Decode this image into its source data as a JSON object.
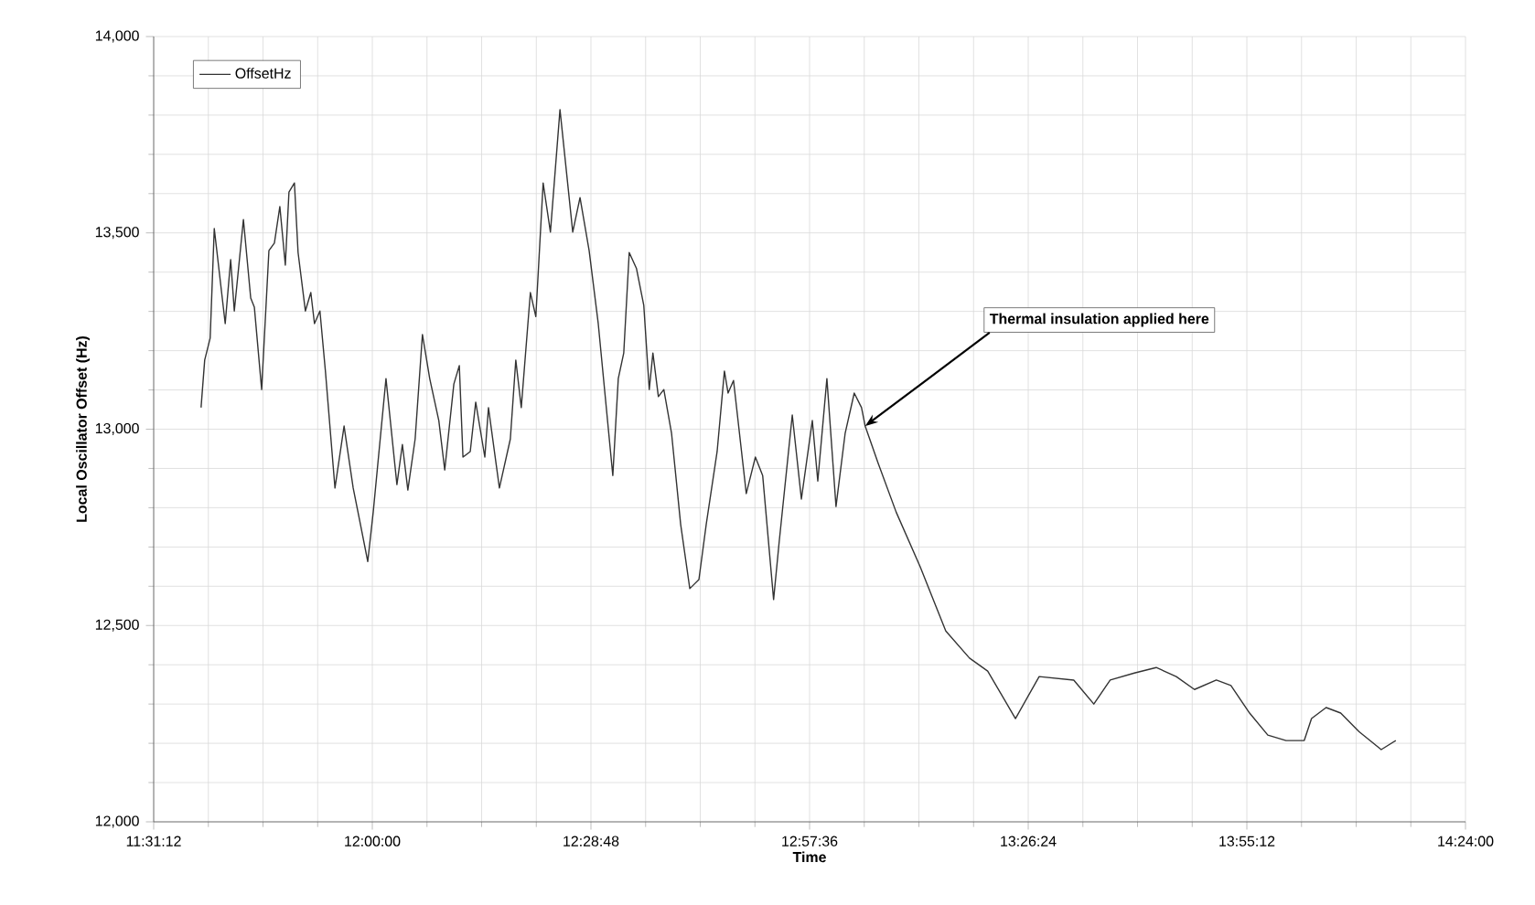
{
  "chart_data": {
    "type": "line",
    "xlabel": "Time",
    "ylabel": "Local Oscillator Offset (Hz)",
    "xlim": [
      11.52,
      14.4
    ],
    "xticks": [
      {
        "value": 11.52,
        "label": "11:31:12"
      },
      {
        "value": 12.0,
        "label": "12:00:00"
      },
      {
        "value": 12.48,
        "label": "12:28:48"
      },
      {
        "value": 12.96,
        "label": "12:57:36"
      },
      {
        "value": 13.44,
        "label": "13:26:24"
      },
      {
        "value": 13.92,
        "label": "13:55:12"
      },
      {
        "value": 14.4,
        "label": "14:24:00"
      }
    ],
    "ylim": [
      12000,
      14000
    ],
    "yticks": [
      {
        "value": 12000,
        "label": "12,000"
      },
      {
        "value": 12500,
        "label": "12,500"
      },
      {
        "value": 13000,
        "label": "13,000"
      },
      {
        "value": 13500,
        "label": "13,500"
      },
      {
        "value": 14000,
        "label": "14,000"
      }
    ],
    "grid": true,
    "legend": "top left",
    "marker": "none",
    "line_style": "solid",
    "annotations": [
      {
        "text": "Thermal insulation applied here",
        "x": 13.082,
        "y": 13008
      }
    ],
    "series": [
      {
        "name": "OffsetHz",
        "color": "#333333",
        "x": [
          11.624,
          11.632,
          11.644,
          11.653,
          11.677,
          11.689,
          11.697,
          11.717,
          11.733,
          11.741,
          11.757,
          11.773,
          11.785,
          11.797,
          11.809,
          11.817,
          11.829,
          11.837,
          11.853,
          11.865,
          11.873,
          11.885,
          11.897,
          11.918,
          11.938,
          11.958,
          11.974,
          11.99,
          12.002,
          12.03,
          12.054,
          12.066,
          12.078,
          12.094,
          12.11,
          12.126,
          12.146,
          12.159,
          12.179,
          12.191,
          12.199,
          12.215,
          12.227,
          12.247,
          12.255,
          12.279,
          12.303,
          12.315,
          12.327,
          12.347,
          12.359,
          12.375,
          12.391,
          12.412,
          12.44,
          12.456,
          12.476,
          12.496,
          12.528,
          12.54,
          12.552,
          12.564,
          12.58,
          12.596,
          12.608,
          12.616,
          12.628,
          12.64,
          12.657,
          12.677,
          12.697,
          12.717,
          12.733,
          12.757,
          12.773,
          12.781,
          12.793,
          12.821,
          12.841,
          12.857,
          12.881,
          12.893,
          12.922,
          12.942,
          12.966,
          12.978,
          12.998,
          13.018,
          13.038,
          13.058,
          13.074,
          13.082,
          13.11,
          13.15,
          13.203,
          13.259,
          13.311,
          13.351,
          13.412,
          13.464,
          13.54,
          13.584,
          13.62,
          13.673,
          13.721,
          13.765,
          13.805,
          13.853,
          13.885,
          13.926,
          13.966,
          14.006,
          14.046,
          14.062,
          14.094,
          14.126,
          14.166,
          14.215,
          14.247
        ],
        "values": [
          13055,
          13176,
          13232,
          13511,
          13269,
          13432,
          13301,
          13534,
          13334,
          13311,
          13101,
          13455,
          13474,
          13567,
          13418,
          13604,
          13627,
          13450,
          13301,
          13348,
          13269,
          13301,
          13148,
          12850,
          13008,
          12850,
          12757,
          12663,
          12789,
          13129,
          12859,
          12961,
          12845,
          12975,
          13241,
          13129,
          13022,
          12896,
          13115,
          13162,
          12929,
          12943,
          13069,
          12929,
          13055,
          12850,
          12975,
          13176,
          13055,
          13348,
          13287,
          13627,
          13502,
          13814,
          13502,
          13590,
          13455,
          13269,
          12882,
          13129,
          13194,
          13450,
          13409,
          13315,
          13101,
          13194,
          13083,
          13101,
          12989,
          12757,
          12594,
          12617,
          12757,
          12943,
          13148,
          13092,
          13124,
          12836,
          12929,
          12882,
          12566,
          12710,
          13036,
          12822,
          13022,
          12868,
          13129,
          12803,
          12989,
          13092,
          13055,
          13008,
          12915,
          12789,
          12649,
          12486,
          12417,
          12384,
          12263,
          12370,
          12361,
          12300,
          12361,
          12379,
          12393,
          12370,
          12337,
          12361,
          12347,
          12277,
          12221,
          12207,
          12207,
          12263,
          12291,
          12277,
          12230,
          12184,
          12207
        ]
      }
    ]
  }
}
